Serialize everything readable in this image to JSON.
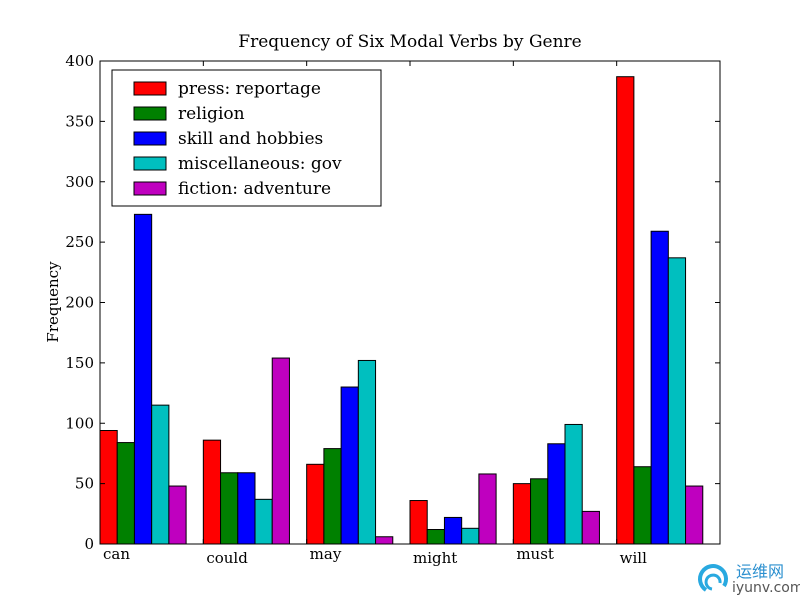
{
  "chart_data": {
    "type": "bar",
    "title": "Frequency of Six Modal Verbs by Genre",
    "xlabel": "",
    "ylabel": "Frequency",
    "categories": [
      "can",
      "could",
      "may",
      "might",
      "must",
      "will"
    ],
    "series": [
      {
        "name": "press: reportage",
        "color": "#ff0000",
        "values": [
          94,
          86,
          66,
          36,
          50,
          387
        ]
      },
      {
        "name": "religion",
        "color": "#008000",
        "values": [
          84,
          59,
          79,
          12,
          54,
          64
        ]
      },
      {
        "name": "skill and hobbies",
        "color": "#0000ff",
        "values": [
          273,
          59,
          130,
          22,
          83,
          259
        ]
      },
      {
        "name": "miscellaneous: gov",
        "color": "#00bfbf",
        "values": [
          115,
          37,
          152,
          13,
          99,
          237
        ]
      },
      {
        "name": "fiction: adventure",
        "color": "#bf00bf",
        "values": [
          48,
          154,
          6,
          58,
          27,
          48
        ]
      }
    ],
    "ylim": [
      0,
      400
    ],
    "yticks": [
      0,
      50,
      100,
      150,
      200,
      250,
      300,
      350,
      400
    ],
    "grid": false,
    "legend_position": "top-left"
  },
  "watermark": {
    "text_cn": "运维网",
    "text_url": "iyunv.com"
  }
}
